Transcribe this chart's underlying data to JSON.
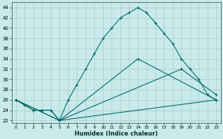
{
  "xlabel": "Humidex (Indice chaleur)",
  "background_color": "#c8eaea",
  "grid_color": "#a8c8c8",
  "line_color": "#006868",
  "xlim": [
    -0.5,
    23.5
  ],
  "ylim": [
    21.5,
    45
  ],
  "yticks": [
    22,
    24,
    26,
    28,
    30,
    32,
    34,
    36,
    38,
    40,
    42,
    44
  ],
  "xticks": [
    0,
    1,
    2,
    3,
    4,
    5,
    6,
    7,
    8,
    9,
    10,
    11,
    12,
    13,
    14,
    15,
    16,
    17,
    18,
    19,
    20,
    21,
    22,
    23
  ],
  "series": [
    {
      "x": [
        0,
        1,
        2,
        3,
        4,
        5,
        23
      ],
      "y": [
        26,
        25,
        24,
        24,
        24,
        22,
        26
      ]
    },
    {
      "x": [
        0,
        5,
        14,
        23
      ],
      "y": [
        26,
        22,
        34,
        26
      ]
    },
    {
      "x": [
        0,
        5,
        19,
        23
      ],
      "y": [
        26,
        22,
        32,
        27
      ]
    },
    {
      "x": [
        0,
        1,
        2,
        3,
        4,
        5,
        6,
        7,
        8,
        9,
        10,
        11,
        12,
        13,
        14,
        15,
        16,
        17,
        18,
        19,
        20,
        21,
        22,
        23
      ],
      "y": [
        26,
        25,
        24,
        24,
        24,
        22,
        26,
        29,
        32,
        35,
        38,
        40,
        42,
        43,
        44,
        43,
        41,
        39,
        37,
        34,
        32,
        30,
        27,
        26
      ]
    }
  ]
}
